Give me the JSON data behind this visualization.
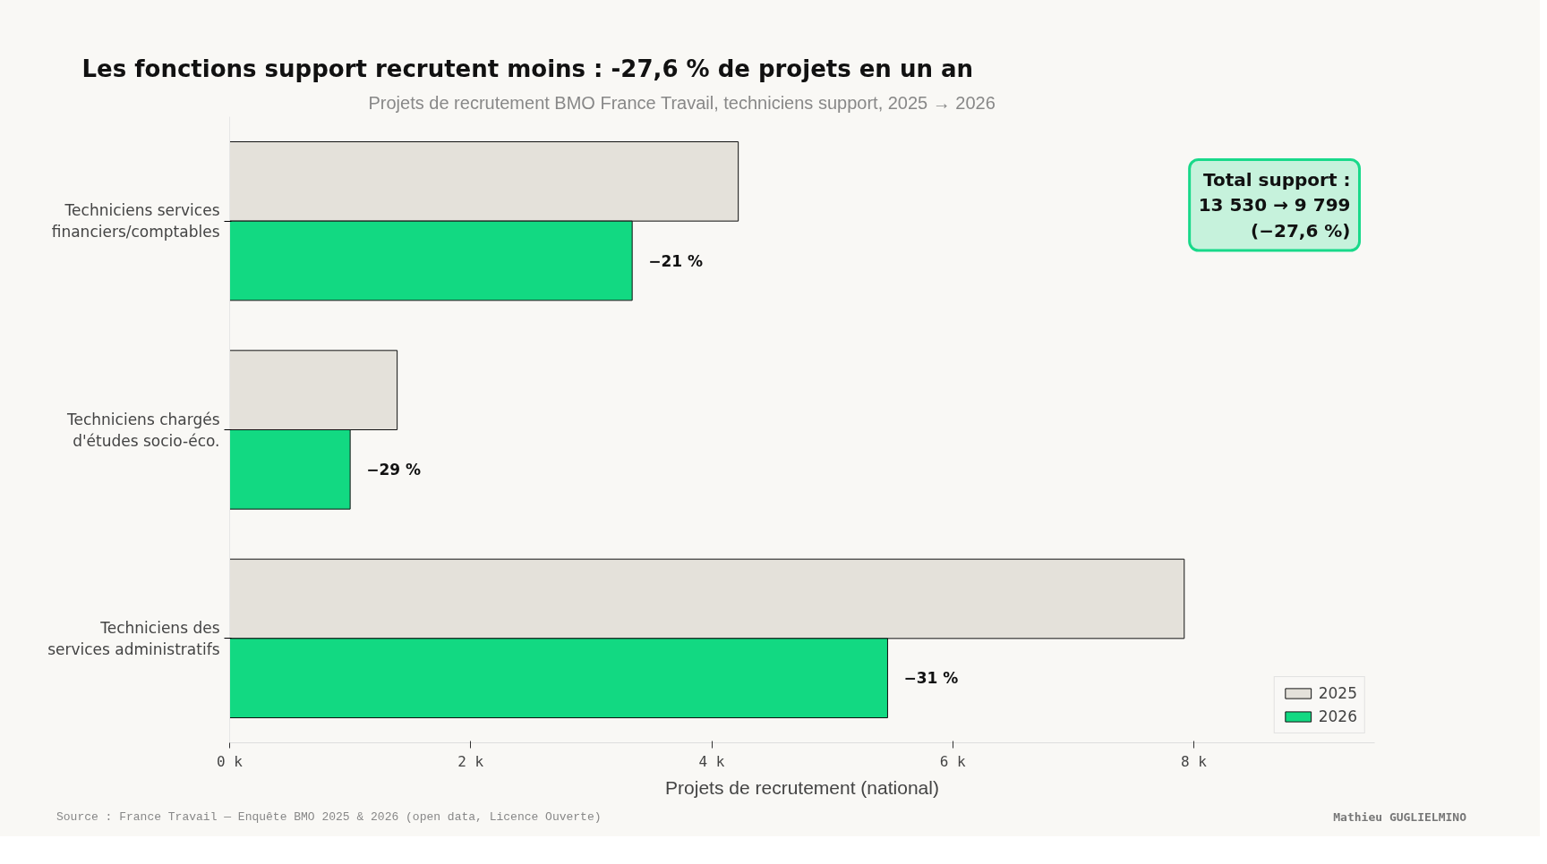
{
  "chart_data": {
    "type": "bar",
    "orientation": "horizontal",
    "title": "Les fonctions support recrutent moins : -27,6 % de projets en un an",
    "subtitle": "Projets de recrutement BMO France Travail, techniciens support, 2025 → 2026",
    "xlabel": "Projets de recrutement (national)",
    "categories": [
      "Techniciens services financiers/comptables",
      "Techniciens chargés d'études socio-éco.",
      "Techniciens des services administratifs"
    ],
    "series": [
      {
        "name": "2025",
        "color": "#e4e1da",
        "values": [
          4220,
          1390,
          7920
        ]
      },
      {
        "name": "2026",
        "color": "#12d982",
        "values": [
          3340,
          1000,
          5459
        ]
      }
    ],
    "xlim": [
      0,
      9500
    ],
    "xticks": [
      {
        "value": 0,
        "label": "0 k"
      },
      {
        "value": 2000,
        "label": "2 k"
      },
      {
        "value": 4000,
        "label": "4 k"
      },
      {
        "value": 6000,
        "label": "6 k"
      },
      {
        "value": 8000,
        "label": "8 k"
      }
    ],
    "grid": false,
    "legend": "bottom right",
    "annotations": [
      "Total support :\n13 530 → 9 799\n(−27,6 %)",
      "Source : France Travail — Enquête BMO 2025 & 2026 (open data, Licence Ouverte)",
      "Mathieu GUGLIELMINO",
      {
        "text": "−21 %",
        "x": 3340,
        "y": "Techniciens services financiers/comptables"
      },
      {
        "text": "−29 %",
        "x": 1000,
        "y": "Techniciens chargés d'études socio-éco."
      },
      {
        "text": "−31 %",
        "x": 5459,
        "y": "Techniciens des services administratifs"
      }
    ]
  }
}
